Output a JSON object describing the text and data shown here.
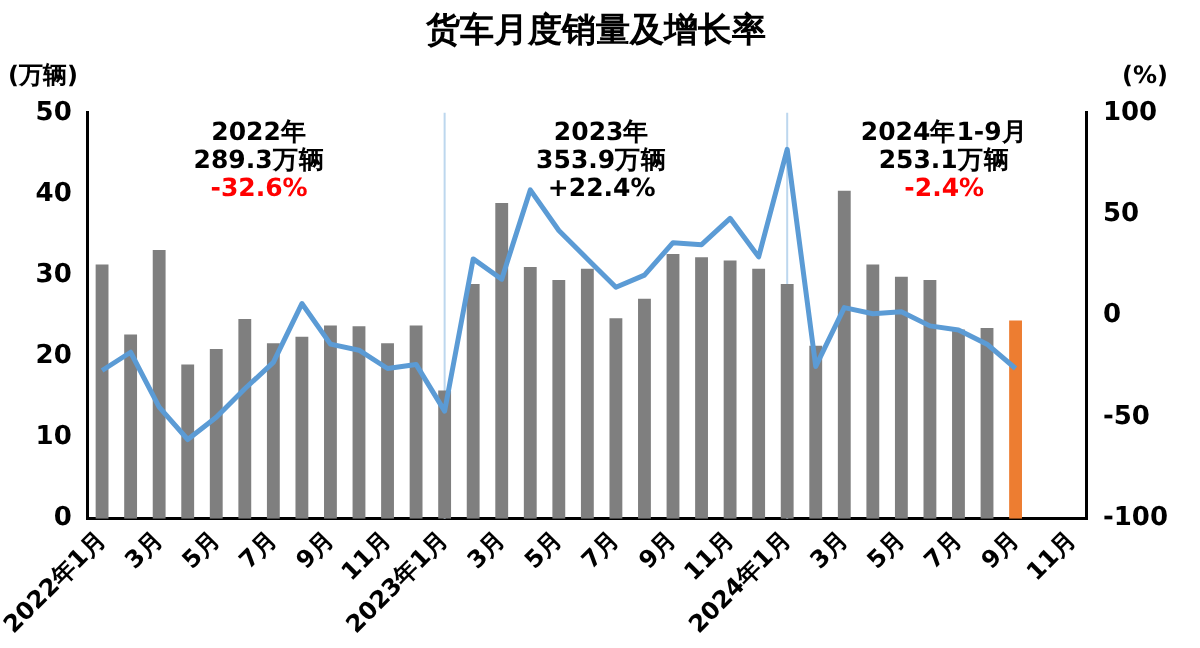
{
  "chart_data": {
    "type": "bar",
    "title": "货车月度销量及增长率",
    "ylabel": "(万辆)",
    "y2label": "(%)",
    "categories": [
      "2022年1月",
      null,
      "3月",
      null,
      "5月",
      null,
      "7月",
      null,
      "9月",
      null,
      "11月",
      null,
      "2023年1月",
      null,
      "3月",
      null,
      "5月",
      null,
      "7月",
      null,
      "9月",
      null,
      "11月",
      null,
      "2024年1月",
      null,
      "3月",
      null,
      "5月",
      null,
      "7月",
      null,
      "9月",
      null,
      "11月"
    ],
    "series": [
      {
        "colors": [
          "#7f7f7f",
          "#7f7f7f",
          "#7f7f7f",
          "#7f7f7f",
          "#7f7f7f",
          "#7f7f7f",
          "#7f7f7f",
          "#7f7f7f",
          "#7f7f7f",
          "#7f7f7f",
          "#7f7f7f",
          "#7f7f7f",
          "#7f7f7f",
          "#7f7f7f",
          "#7f7f7f",
          "#7f7f7f",
          "#7f7f7f",
          "#7f7f7f",
          "#7f7f7f",
          "#7f7f7f",
          "#7f7f7f",
          "#7f7f7f",
          "#7f7f7f",
          "#7f7f7f",
          "#7f7f7f",
          "#7f7f7f",
          "#7f7f7f",
          "#7f7f7f",
          "#7f7f7f",
          "#7f7f7f",
          "#7f7f7f",
          "#7f7f7f",
          "#ed7d31",
          "#7f7f7f",
          "#7f7f7f"
        ],
        "values": [
          31.3,
          22.7,
          33.1,
          19.0,
          20.9,
          24.6,
          21.6,
          22.4,
          23.8,
          23.7,
          21.6,
          23.8,
          15.8,
          28.9,
          38.9,
          31.0,
          29.4,
          30.8,
          24.7,
          27.1,
          32.6,
          32.2,
          31.8,
          30.8,
          28.9,
          21.3,
          40.4,
          31.3,
          29.8,
          29.4,
          23.3,
          23.5,
          24.4,
          null,
          null
        ]
      },
      {
        "type": "line",
        "axis": "y2",
        "color": "#5b9bd5",
        "values": [
          -27,
          -18,
          -45,
          -61,
          -50,
          -36,
          -23,
          6,
          -14,
          -17,
          -26,
          -24,
          -47,
          28,
          18,
          62,
          42,
          28,
          14,
          20,
          36,
          35,
          48,
          29,
          82,
          -25,
          4,
          1,
          2,
          -5,
          -7,
          -14,
          -26,
          null,
          null
        ]
      }
    ],
    "ylim": [
      0,
      50
    ],
    "yticks": [
      0,
      10,
      20,
      30,
      40,
      50
    ],
    "y2lim": [
      -100,
      100
    ],
    "y2ticks": [
      -100,
      -50,
      0,
      50,
      100
    ],
    "grid": false,
    "legend": false,
    "marker": "none",
    "line_style": "solid",
    "ref_lines": [
      {
        "axis": "x",
        "value": "2023年1月",
        "color": "#bdd7ee"
      },
      {
        "axis": "x",
        "value": "2024年1月",
        "color": "#bdd7ee"
      }
    ],
    "annotations": [
      "2022年\n289.3万辆\n-32.6%",
      "2023年\n353.9万辆\n+22.4%",
      "2024年1-9月\n253.1万辆\n-2.4%"
    ]
  }
}
